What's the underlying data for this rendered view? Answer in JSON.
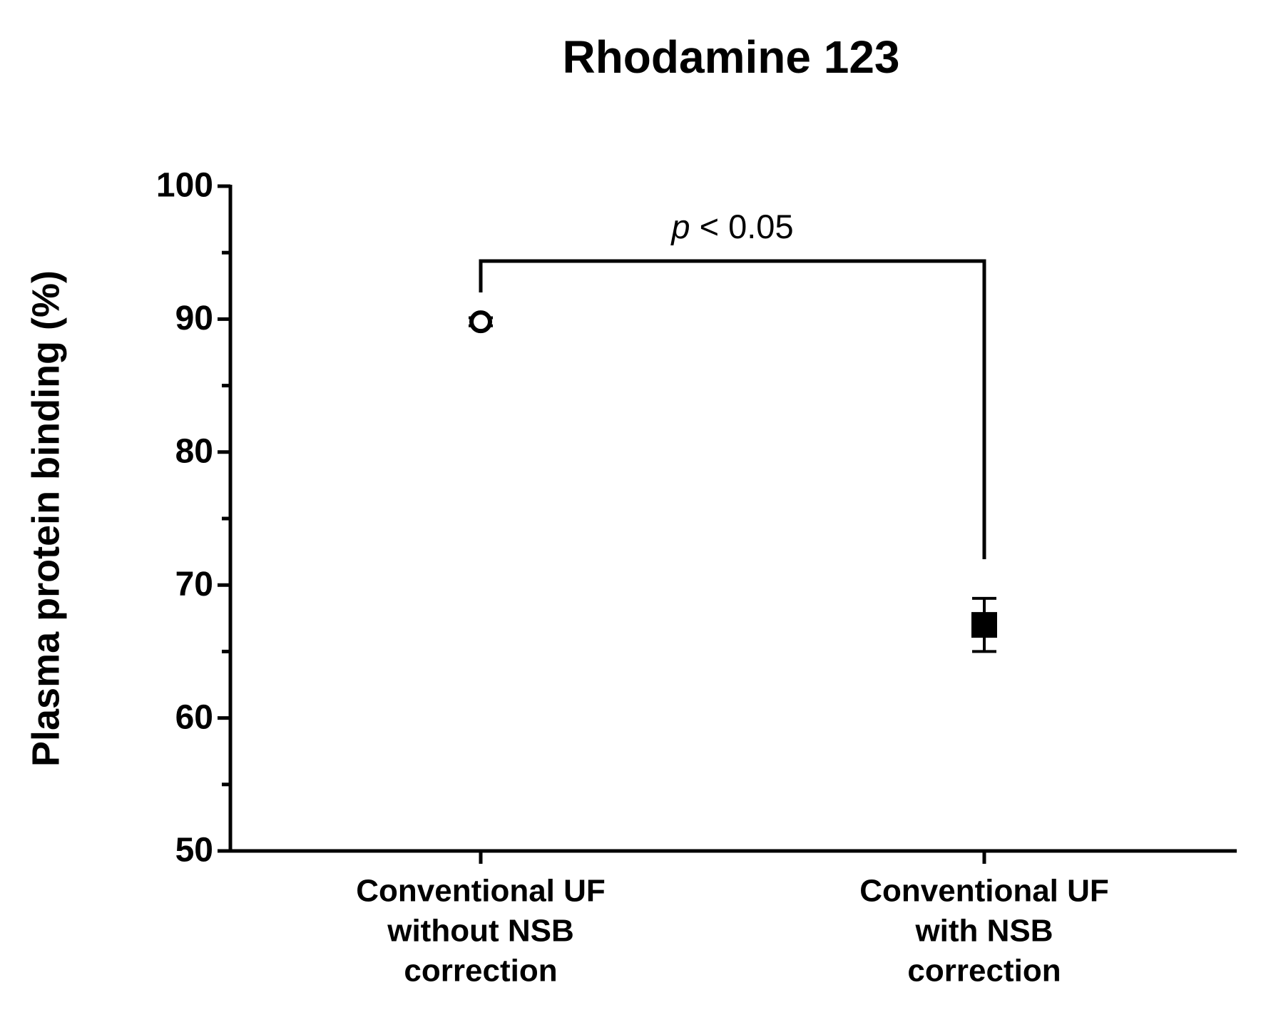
{
  "chart_data": {
    "type": "dot",
    "title": "Rhodamine 123",
    "y_label": "Plasma protein binding (%)",
    "categories": [
      [
        "Conventional UF",
        "without NSB",
        "correction"
      ],
      [
        "Conventional UF",
        "with NSB",
        "correction"
      ]
    ],
    "values": [
      89.8,
      67
    ],
    "errors": [
      0.3,
      2
    ],
    "markers": [
      "circle-open",
      "square"
    ],
    "color": "#000000",
    "ylim": [
      50,
      100
    ],
    "yticks": [
      50,
      60,
      70,
      80,
      90,
      100
    ],
    "yminor": [
      55,
      65,
      75,
      85,
      95
    ],
    "annotation": [
      "p",
      "< 0.05"
    ]
  }
}
